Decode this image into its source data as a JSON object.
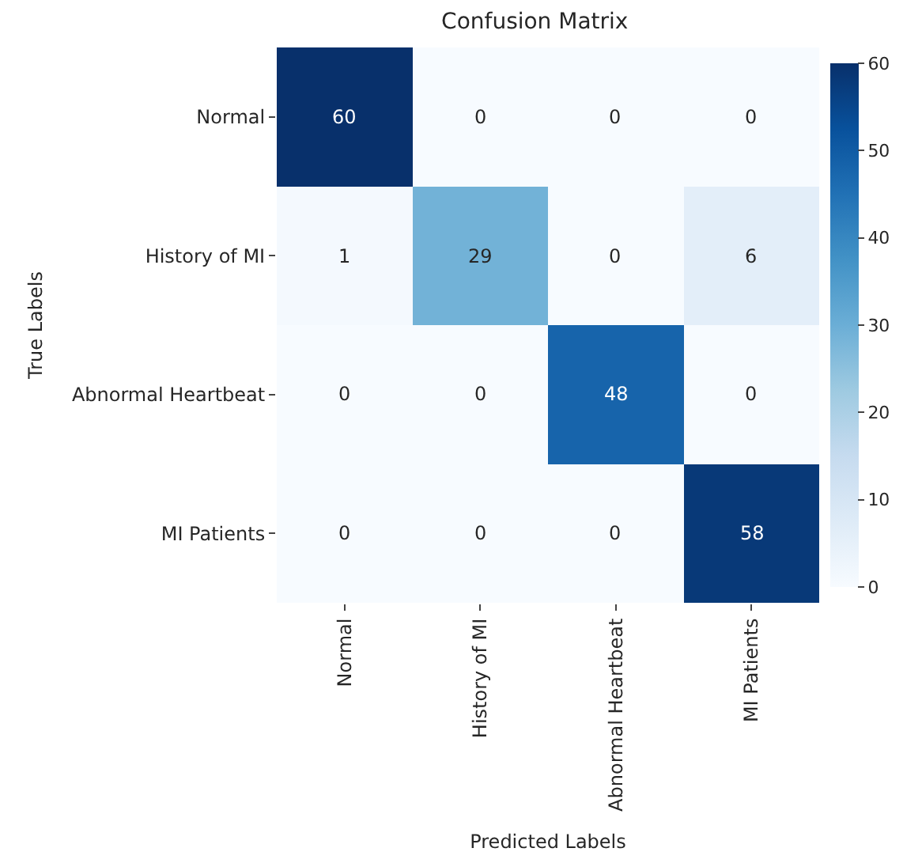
{
  "chart_data": {
    "type": "heatmap",
    "title": "Confusion Matrix",
    "xlabel": "Predicted Labels",
    "ylabel": "True Labels",
    "categories": [
      "Normal",
      "History of MI",
      "Abnormal Heartbeat",
      "MI Patients"
    ],
    "y_categories": [
      "Normal",
      "History of MI",
      "Abnormal Heartbeat",
      "MI Patients"
    ],
    "cells": [
      [
        60,
        0,
        0,
        0
      ],
      [
        1,
        29,
        0,
        6
      ],
      [
        0,
        0,
        48,
        0
      ],
      [
        0,
        0,
        0,
        58
      ]
    ],
    "clim": [
      0,
      60
    ],
    "cticks": [
      0,
      10,
      20,
      30,
      40,
      50,
      60
    ],
    "data_labels": true
  }
}
